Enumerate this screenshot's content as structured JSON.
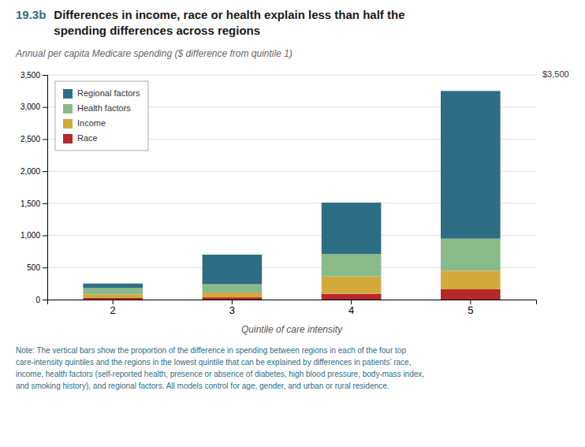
{
  "chart_data": {
    "type": "bar",
    "stacked": true,
    "title": [
      "19.3b",
      "Differences in income, race or health explain less than half the",
      "spending differences across regions"
    ],
    "subtitle": "Annual per capita Medicare spending ($ difference from quintile 1)",
    "xlabel": "Quintile of care intensity",
    "categories": [
      2,
      3,
      4,
      5
    ],
    "series": [
      {
        "name": "Race",
        "color": "#b5292a",
        "values": [
          25,
          35,
          90,
          160
        ]
      },
      {
        "name": "Income",
        "color": "#d4a93c",
        "values": [
          55,
          75,
          270,
          290
        ]
      },
      {
        "name": "Health factors",
        "color": "#8aba8a",
        "values": [
          100,
          130,
          350,
          500
        ]
      },
      {
        "name": "Regional factors",
        "color": "#2e6e85",
        "values": [
          70,
          460,
          800,
          2300
        ]
      }
    ],
    "ylim": [
      0,
      3500
    ],
    "yticks": [
      0,
      500,
      {
        "value": 1000,
        "label": "1,000"
      },
      {
        "value": 1500,
        "label": "1,500"
      },
      {
        "value": 2000,
        "label": "2,000"
      },
      {
        "value": 2500,
        "label": "2,500"
      },
      {
        "value": 3000,
        "label": "3,000"
      },
      {
        "value": 3500,
        "label": "3,500"
      }
    ],
    "grid": true,
    "legend": "upper left",
    "annotations": [
      {
        "text": "$3,500",
        "y": 3500
      },
      {
        "text": "Note: The vertical bars show the proportion of the difference in spending between regions in each of the four top\ncare-intensity quintiles and the regions in the lowest quintile that can be explained by differences in patients’ race,\nincome, health factors (self-reported health, presence or absence of diabetes, high blood pressure, body-mass index,\nand smoking history), and regional factors. All models control for age, gender, and urban or rural residence."
      }
    ]
  }
}
